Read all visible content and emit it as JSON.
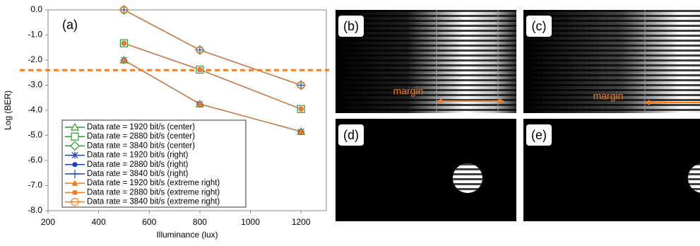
{
  "chart_data": {
    "type": "line",
    "annotation": "(a)",
    "xlabel": "Illuminance (lux)",
    "ylabel": "Log (BER)",
    "x": [
      500,
      800,
      1200
    ],
    "xlim": [
      200,
      1300
    ],
    "xticks": [
      200,
      400,
      600,
      800,
      1000,
      1200
    ],
    "ylim": [
      -8,
      0
    ],
    "yticks": [
      {
        "value": 0,
        "label": "0.0"
      },
      {
        "value": -1,
        "label": "-1.0"
      },
      {
        "value": -2,
        "label": "-2.0"
      },
      {
        "value": -3,
        "label": "-3.0"
      },
      {
        "value": -4,
        "label": "-4.0"
      },
      {
        "value": -5,
        "label": "-5.0"
      },
      {
        "value": -6,
        "label": "-6.0"
      },
      {
        "value": -7,
        "label": "-7.0"
      },
      {
        "value": -8,
        "label": "-8.0"
      }
    ],
    "reference_line": {
      "value": -2.4,
      "color": "#f47c20"
    },
    "series": [
      {
        "name": "Data rate = 1920 bit/s (center)",
        "color": "#2e9a2e",
        "marker": "triangle",
        "values": [
          -2.0,
          -3.75,
          -4.85
        ]
      },
      {
        "name": "Data rate = 2880 bit/s (center)",
        "color": "#2e9a2e",
        "marker": "square",
        "values": [
          -1.33,
          -2.38,
          -3.95
        ]
      },
      {
        "name": "Data rate = 3840 bit/s (center)",
        "color": "#2e9a2e",
        "marker": "diamond",
        "values": [
          0.0,
          -1.6,
          -3.0
        ]
      },
      {
        "name": "Data rate = 1920 bit/s (right)",
        "color": "#1f3fbf",
        "marker": "asterisk",
        "values": [
          -2.0,
          -3.75,
          -4.85
        ]
      },
      {
        "name": "Data rate = 2880 bit/s (right)",
        "color": "#1f3fbf",
        "marker": "dot",
        "values": [
          -1.33,
          -2.38,
          -3.95
        ]
      },
      {
        "name": "Data rate = 3840 bit/s (right)",
        "color": "#1f3fbf",
        "marker": "plus",
        "values": [
          0.0,
          -1.6,
          -3.0
        ]
      },
      {
        "name": "Data rate = 1920 bit/s (extreme right)",
        "color": "#f47c20",
        "marker": "filled-triangle",
        "values": [
          -2.0,
          -3.75,
          -4.85
        ]
      },
      {
        "name": "Data rate = 2880 bit/s (extreme right)",
        "color": "#f47c20",
        "marker": "filled-square",
        "values": [
          -1.33,
          -2.38,
          -3.95
        ]
      },
      {
        "name": "Data rate = 3840 bit/s (extreme right)",
        "color": "#f47c20",
        "marker": "circle",
        "values": [
          0.0,
          -1.6,
          -3.0
        ]
      }
    ]
  },
  "panels": [
    {
      "label": "(b)",
      "annotation": "margin"
    },
    {
      "label": "(c)",
      "annotation": "margin"
    },
    {
      "label": "(d)"
    },
    {
      "label": "(e)"
    }
  ]
}
